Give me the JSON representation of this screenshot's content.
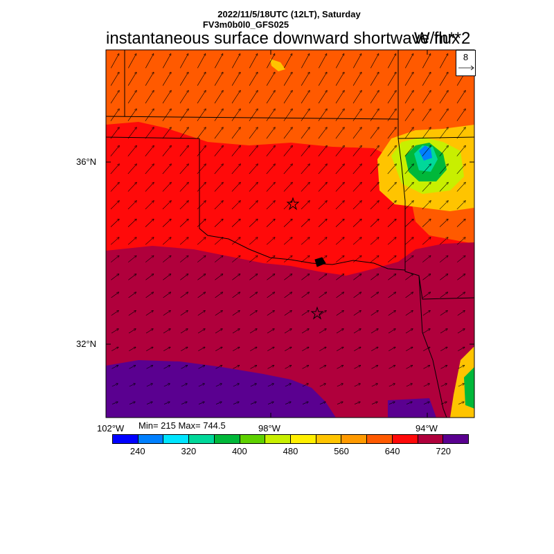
{
  "header": {
    "date": "2022/11/5/18UTC (12LT), Saturday",
    "model": "FV3m0b0l0_GFS025",
    "title": "instantaneous surface downward shortwave flux",
    "units": "W/m**2"
  },
  "map": {
    "lat_labels": [
      "36°N",
      "32°N"
    ],
    "lon_labels": [
      "102°W",
      "98°W",
      "94°W"
    ],
    "min_max": "Min= 215 Max= 744.5",
    "reference_vector": "8",
    "markers": [
      "star",
      "star"
    ]
  },
  "colorbar": {
    "colors": [
      "#0000ff",
      "#0080ff",
      "#00e5ff",
      "#00d89a",
      "#00b83a",
      "#5ed100",
      "#c8ef00",
      "#ffef00",
      "#ffc400",
      "#ff9a00",
      "#ff5a00",
      "#ff0a0a",
      "#b0003c",
      "#5a0090"
    ],
    "tick_labels": [
      "240",
      "320",
      "400",
      "480",
      "560",
      "640",
      "720"
    ]
  }
}
